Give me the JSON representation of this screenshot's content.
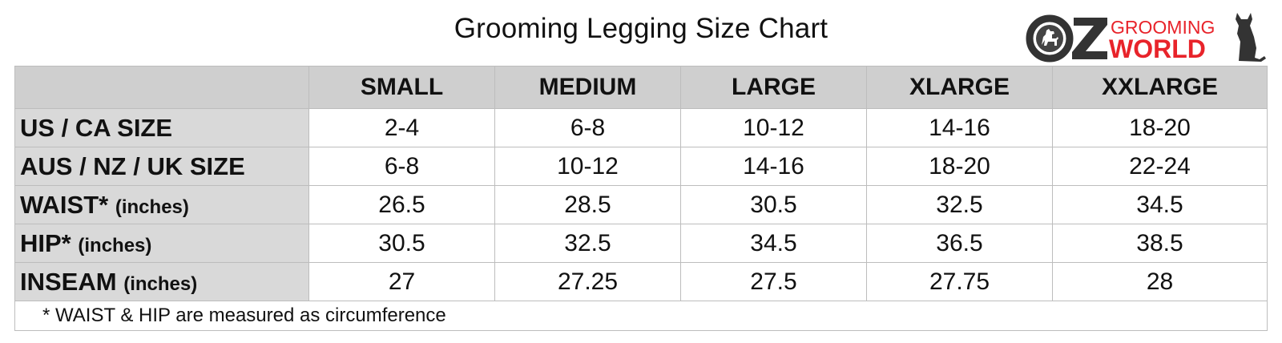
{
  "title": "Grooming Legging Size Chart",
  "logo": {
    "left_text": "OZ",
    "top_text": "GROOMING",
    "bottom_text": "WORLD",
    "brand_red": "#e8232a",
    "dark": "#333333"
  },
  "table": {
    "columns": [
      "SMALL",
      "MEDIUM",
      "LARGE",
      "XLARGE",
      "XXLARGE"
    ],
    "rows": [
      {
        "label": "US / CA SIZE",
        "unit": "",
        "values": [
          "2-4",
          "6-8",
          "10-12",
          "14-16",
          "18-20"
        ]
      },
      {
        "label": "AUS / NZ / UK SIZE",
        "unit": "",
        "values": [
          "6-8",
          "10-12",
          "14-16",
          "18-20",
          "22-24"
        ]
      },
      {
        "label": "WAIST*",
        "unit": "(inches)",
        "values": [
          "26.5",
          "28.5",
          "30.5",
          "32.5",
          "34.5"
        ]
      },
      {
        "label": "HIP*",
        "unit": "(inches)",
        "values": [
          "30.5",
          "32.5",
          "34.5",
          "36.5",
          "38.5"
        ]
      },
      {
        "label": "INSEAM",
        "unit": "(inches)",
        "values": [
          "27",
          "27.25",
          "27.5",
          "27.75",
          "28"
        ]
      }
    ],
    "footnote": "* WAIST & HIP are measured as circumference"
  }
}
